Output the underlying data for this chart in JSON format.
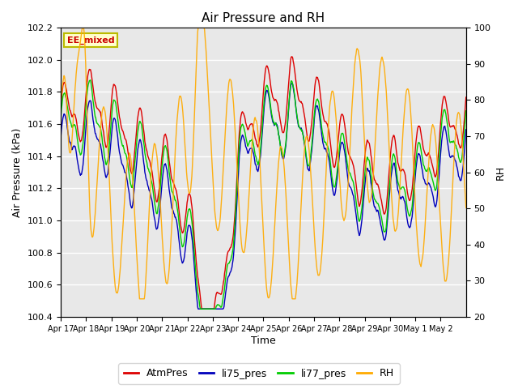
{
  "title": "Air Pressure and RH",
  "xlabel": "Time",
  "ylabel_left": "Air Pressure (kPa)",
  "ylabel_right": "RH",
  "ylim_left": [
    100.4,
    102.2
  ],
  "ylim_right": [
    20,
    100
  ],
  "yticks_left": [
    100.4,
    100.6,
    100.8,
    101.0,
    101.2,
    101.4,
    101.6,
    101.8,
    102.0,
    102.2
  ],
  "yticks_right": [
    20,
    30,
    40,
    50,
    60,
    70,
    80,
    90,
    100
  ],
  "xtick_labels": [
    "Apr 17",
    "Apr 18",
    "Apr 19",
    "Apr 20",
    "Apr 21",
    "Apr 22",
    "Apr 23",
    "Apr 24",
    "Apr 25",
    "Apr 26",
    "Apr 27",
    "Apr 28",
    "Apr 29",
    "Apr 30",
    "May 1",
    "May 2"
  ],
  "legend_labels": [
    "AtmPres",
    "li75_pres",
    "li77_pres",
    "RH"
  ],
  "legend_colors": [
    "#dd0000",
    "#0000bb",
    "#00cc00",
    "#ffaa00"
  ],
  "line_colors": [
    "#dd0000",
    "#0000bb",
    "#00cc00",
    "#ffaa00"
  ],
  "annotation_text": "EE_mixed",
  "annotation_color": "#cc0000",
  "annotation_bg": "#ffffcc",
  "annotation_border": "#bbbb00",
  "background_inner": "#e8e8e8",
  "background_outer": "#ffffff",
  "grid_color": "#ffffff",
  "n_days": 16,
  "pts_per_day": 48
}
